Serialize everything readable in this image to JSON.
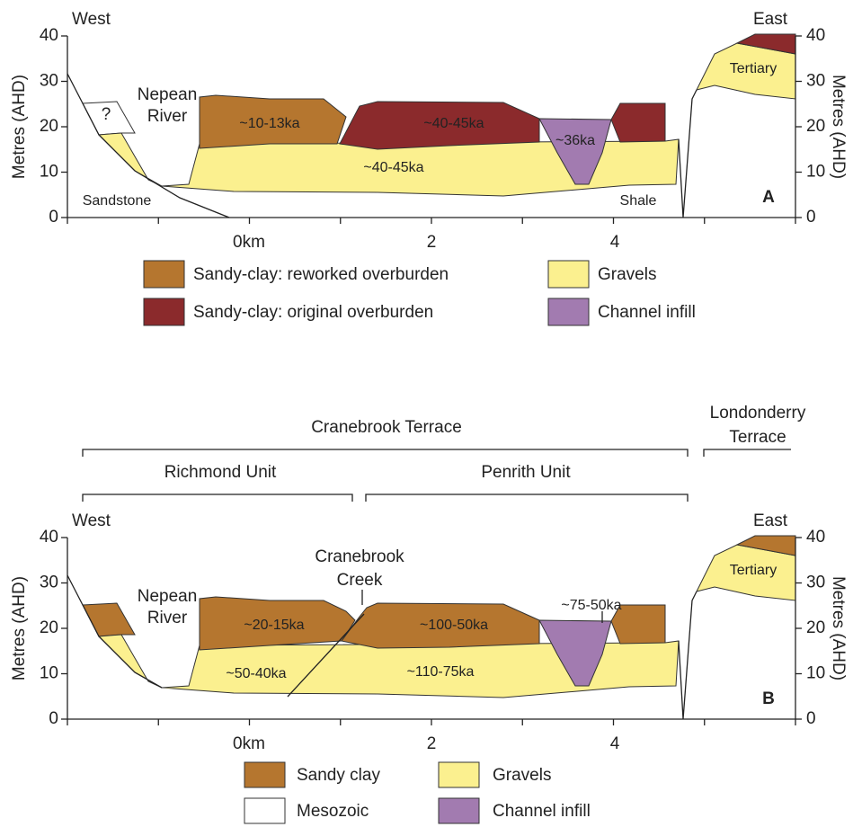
{
  "panels": [
    {
      "label": "A",
      "west": "West",
      "east": "East",
      "y_title_left": "Metres (AHD)",
      "y_title_right": "Metres (AHD)",
      "y_ticks_left": [
        "0",
        "10",
        "20",
        "30",
        "40"
      ],
      "y_ticks_right": [
        "0",
        "10",
        "20",
        "30",
        "40"
      ],
      "x_ticks": [
        "0km",
        "2",
        "4"
      ],
      "annotations": {
        "nepean": [
          "Nepean",
          "River"
        ],
        "question": "?",
        "sandstone": "Sandstone",
        "shale": "Shale",
        "reworked": "~10-13ka",
        "original": "~40-45ka",
        "channel": "~36ka",
        "gravels": "~40-45ka",
        "tertiary": "Tertiary"
      },
      "legend": [
        {
          "label": "Sandy-clay: reworked overburden"
        },
        {
          "label": "Sandy-clay: original overburden"
        },
        {
          "label": "Gravels"
        },
        {
          "label": "Channel infill"
        }
      ]
    },
    {
      "label": "B",
      "west": "West",
      "east": "East",
      "y_title_left": "Metres (AHD)",
      "y_title_right": "Metres (AHD)",
      "y_ticks_left": [
        "0",
        "10",
        "20",
        "30",
        "40"
      ],
      "y_ticks_right": [
        "0",
        "10",
        "20",
        "30",
        "40"
      ],
      "x_ticks": [
        "0km",
        "2",
        "4"
      ],
      "annotations": {
        "nepean": [
          "Nepean",
          "River"
        ],
        "creek": [
          "Cranebrook",
          "Creek"
        ],
        "upper_west": "~20-15ka",
        "upper_east": "~100-50ka",
        "channel": "~75-50ka",
        "lower_west": "~50-40ka",
        "lower_east": "~110-75ka",
        "tertiary": "Tertiary"
      },
      "terraces": {
        "cranebrook": "Cranebrook Terrace",
        "londonderry": [
          "Londonderry",
          "Terrace"
        ],
        "richmond": "Richmond Unit",
        "penrith": "Penrith Unit"
      },
      "legend": [
        {
          "label": "Sandy clay"
        },
        {
          "label": "Mesozoic"
        },
        {
          "label": "Gravels"
        },
        {
          "label": "Channel infill"
        }
      ]
    }
  ]
}
